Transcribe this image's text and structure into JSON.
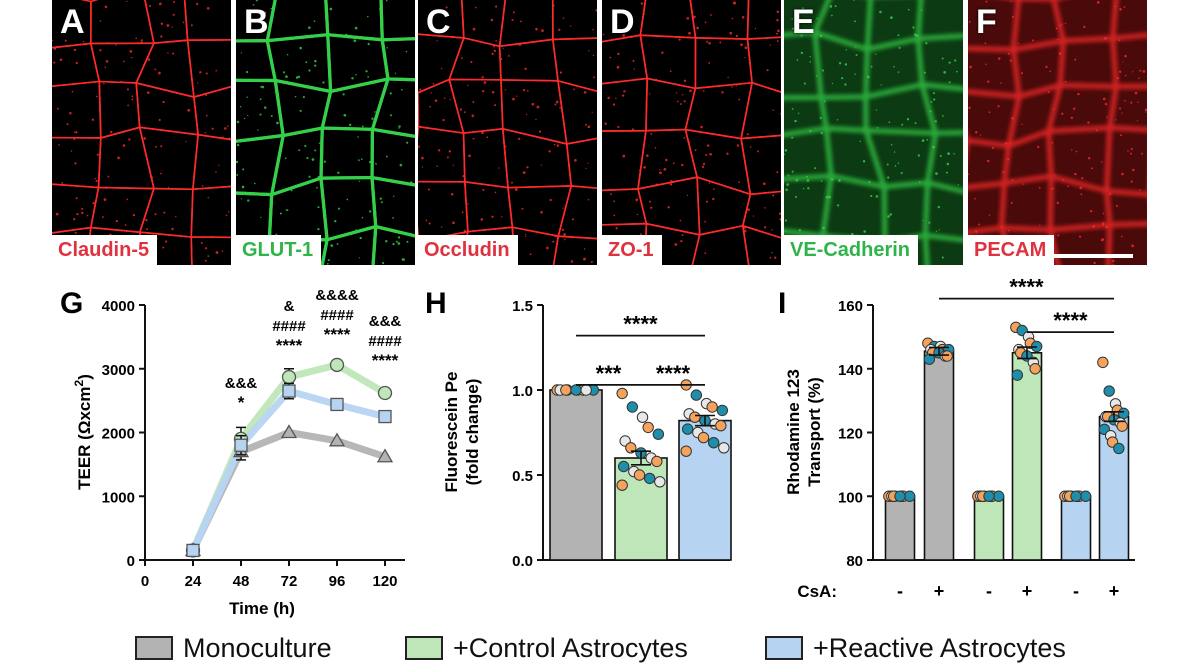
{
  "micrographs": [
    {
      "letter": "A",
      "stain": "Claudin-5",
      "tone": "red",
      "style": "mesh"
    },
    {
      "letter": "B",
      "stain": "GLUT-1",
      "tone": "green",
      "style": "thick"
    },
    {
      "letter": "C",
      "stain": "Occludin",
      "tone": "red",
      "style": "mesh"
    },
    {
      "letter": "D",
      "stain": "ZO-1",
      "tone": "red",
      "style": "mesh"
    },
    {
      "letter": "E",
      "stain": "VE-Cadherin",
      "tone": "green",
      "style": "diffuse"
    },
    {
      "letter": "F",
      "stain": "PECAM",
      "tone": "red",
      "style": "diffuse"
    }
  ],
  "colors": {
    "red_stain": "#ff2a2a",
    "green_stain": "#35d04a",
    "red_text": "#e0313f",
    "green_text": "#2fb44a",
    "mono": "#b3b3b3",
    "ctrl": "#bfe6b8",
    "react": "#b6d4f2",
    "mono_dark": "#8c8c8c",
    "ctrl_dark": "#8fd08a",
    "react_dark": "#6f9fd8",
    "dot_orange": "#f5a35c",
    "dot_teal": "#1f8eaa",
    "dot_white": "#e8e8e8"
  },
  "chart_data": [
    {
      "panel": "G",
      "type": "line",
      "ylabel_main": "TEER (Ωxcm",
      "ylabel_sup": "2",
      "ylabel_close": ")",
      "xlabel": "Time (h)",
      "xlim": [
        0,
        130
      ],
      "ylim": [
        0,
        4000
      ],
      "xticks": [
        0,
        24,
        48,
        72,
        96,
        120
      ],
      "yticks": [
        0,
        1000,
        2000,
        3000,
        4000
      ],
      "series": [
        {
          "name": "Monoculture",
          "marker": "triangle",
          "x": [
            24,
            48,
            72,
            96,
            120
          ],
          "y": [
            150,
            1700,
            2000,
            1870,
            1620
          ],
          "err": [
            0,
            130,
            0,
            0,
            0
          ]
        },
        {
          "name": "+Control Astrocytes",
          "marker": "circle",
          "x": [
            24,
            48,
            72,
            96,
            120
          ],
          "y": [
            150,
            1900,
            2870,
            3060,
            2620
          ],
          "err": [
            0,
            180,
            130,
            0,
            0
          ]
        },
        {
          "name": "+Reactive Astrocytes",
          "marker": "square",
          "x": [
            24,
            48,
            72,
            96,
            120
          ],
          "y": [
            150,
            1800,
            2650,
            2440,
            2250
          ],
          "err": [
            0,
            150,
            120,
            0,
            0
          ]
        }
      ],
      "annotations": [
        {
          "x": 48,
          "lines": [
            "&&&",
            "*"
          ]
        },
        {
          "x": 72,
          "lines": [
            "&",
            "####",
            "****"
          ]
        },
        {
          "x": 96,
          "lines": [
            "&&&&",
            "####",
            "****"
          ]
        },
        {
          "x": 120,
          "lines": [
            "&&&",
            "####",
            "****"
          ]
        }
      ]
    },
    {
      "panel": "H",
      "type": "bar",
      "ylabel_lines": [
        "Fluorescein Pe",
        "(fold change)"
      ],
      "ylim": [
        0,
        1.5
      ],
      "yticks": [
        "0.0",
        "0.5",
        "1.0",
        "1.5"
      ],
      "categories": [
        "Monoculture",
        "+Control Astrocytes",
        "+Reactive Astrocytes"
      ],
      "values": [
        1.0,
        0.6,
        0.82
      ],
      "err": [
        0,
        0.04,
        0.03
      ],
      "points": [
        [
          1,
          1,
          1,
          1,
          1,
          1,
          1,
          1,
          1
        ],
        [
          0.98,
          0.9,
          0.84,
          0.78,
          0.74,
          0.7,
          0.66,
          0.63,
          0.6,
          0.58,
          0.55,
          0.52,
          0.5,
          0.48,
          0.46,
          0.44
        ],
        [
          1.03,
          0.97,
          0.92,
          0.9,
          0.88,
          0.86,
          0.84,
          0.82,
          0.8,
          0.79,
          0.77,
          0.75,
          0.72,
          0.69,
          0.66,
          0.64
        ]
      ],
      "significance": [
        {
          "from": 0,
          "to": 2,
          "label": "****",
          "level": 1.32
        },
        {
          "from": 0,
          "to": 1,
          "label": "***",
          "level": 1.03
        },
        {
          "from": 1,
          "to": 2,
          "label": "****",
          "level": 1.03
        }
      ]
    },
    {
      "panel": "I",
      "type": "bar",
      "ylabel_lines": [
        "Rhodamine 123",
        "Transport (%)"
      ],
      "ylim": [
        80,
        160
      ],
      "yticks": [
        80,
        100,
        120,
        140,
        160
      ],
      "treatment_label": "CsA:",
      "categories": [
        "-",
        "+",
        "-",
        "+",
        "-",
        "+"
      ],
      "groups": [
        "Monoculture",
        "Monoculture",
        "+Control Astrocytes",
        "+Control Astrocytes",
        "+Reactive Astrocytes",
        "+Reactive Astrocytes"
      ],
      "values": [
        100,
        145.5,
        100,
        145,
        100,
        125
      ],
      "err": [
        0,
        1.2,
        0,
        1.8,
        0,
        1.5
      ],
      "points": [
        [
          100,
          100,
          100,
          100,
          100,
          100,
          100,
          100
        ],
        [
          148,
          147,
          147,
          146,
          146,
          146,
          145,
          145,
          144,
          144,
          143
        ],
        [
          100,
          100,
          100,
          100,
          100,
          100,
          100,
          100
        ],
        [
          153,
          152,
          150,
          148,
          147,
          146,
          145,
          144,
          142,
          140,
          138
        ],
        [
          100,
          100,
          100,
          100,
          100,
          100,
          100,
          100
        ],
        [
          142,
          133,
          129,
          127,
          126,
          125,
          125,
          124,
          123,
          122,
          121,
          119,
          117,
          115
        ]
      ],
      "significance": [
        {
          "from": 1,
          "to": 5,
          "label": "****",
          "level": 162
        },
        {
          "from": 3,
          "to": 5,
          "label": "****",
          "level": 151.5
        }
      ]
    }
  ],
  "panel_letters": [
    "G",
    "H",
    "I"
  ],
  "legend": [
    {
      "label": "Monoculture",
      "color_key": "mono"
    },
    {
      "label": "+Control Astrocytes",
      "color_key": "ctrl"
    },
    {
      "label": "+Reactive Astrocytes",
      "color_key": "react"
    }
  ]
}
